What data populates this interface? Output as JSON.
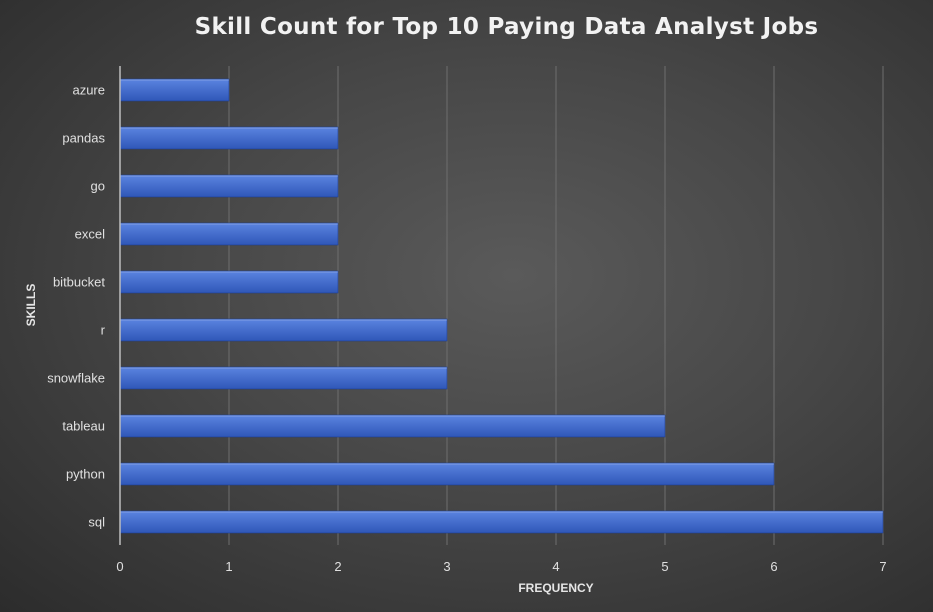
{
  "chart_data": {
    "type": "bar",
    "orientation": "horizontal",
    "title": "Skill Count for Top 10 Paying Data Analyst Jobs",
    "xlabel": "FREQUENCY",
    "ylabel": "SKILLS",
    "categories": [
      "azure",
      "pandas",
      "go",
      "excel",
      "bitbucket",
      "r",
      "snowflake",
      "tableau",
      "python",
      "sql"
    ],
    "values": [
      1,
      2,
      2,
      2,
      2,
      3,
      3,
      5,
      6,
      7
    ],
    "xlim": [
      0,
      7
    ],
    "xticks": [
      0,
      1,
      2,
      3,
      4,
      5,
      6,
      7
    ],
    "grid": "vertical",
    "legend": "none",
    "colors": {
      "bar_top": "#5b84e0",
      "bar_bottom": "#2f57b8",
      "grid": "#6e6e6e",
      "axis": "#bdbdbd"
    }
  }
}
